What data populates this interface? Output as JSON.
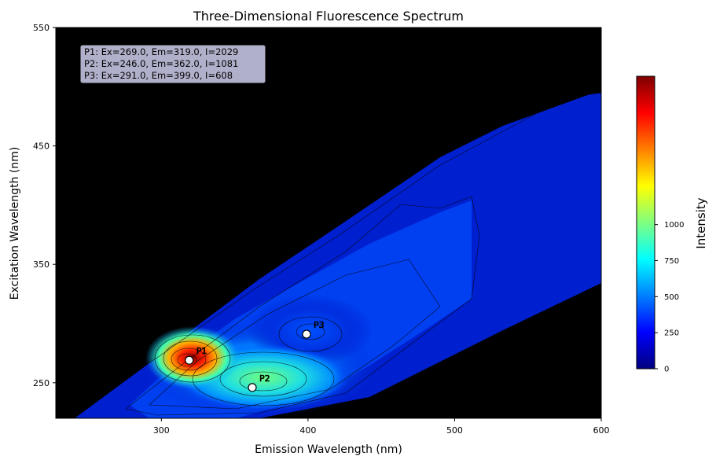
{
  "chart_data": {
    "type": "heatmap",
    "title": "Three-Dimensional Fluorescence Spectrum",
    "xlabel": "Emission Wavelength (nm)",
    "ylabel": "Excitation Wavelength (nm)",
    "xlim": [
      228,
      600
    ],
    "ylim": [
      220,
      550
    ],
    "x_ticks": [
      300,
      400,
      500,
      600
    ],
    "y_ticks": [
      250,
      350,
      450,
      550
    ],
    "colorbar": {
      "label": "Intensity",
      "min": 0,
      "max": 2029,
      "ticks": [
        0,
        250,
        500,
        750,
        1000
      ],
      "colormap": "jet"
    },
    "background_color": "#00008b",
    "annotation_lines": [
      "P1: Ex=269.0, Em=319.0, I=2029",
      "P2: Ex=246.0, Em=362.0, I=1081",
      "P3: Ex=291.0, Em=399.0, I=608"
    ],
    "peaks": [
      {
        "label": "P1",
        "ex": 269.0,
        "em": 319.0,
        "intensity": 2029
      },
      {
        "label": "P2",
        "ex": 246.0,
        "em": 362.0,
        "intensity": 1081
      },
      {
        "label": "P3",
        "ex": 291.0,
        "em": 399.0,
        "intensity": 608
      }
    ]
  }
}
